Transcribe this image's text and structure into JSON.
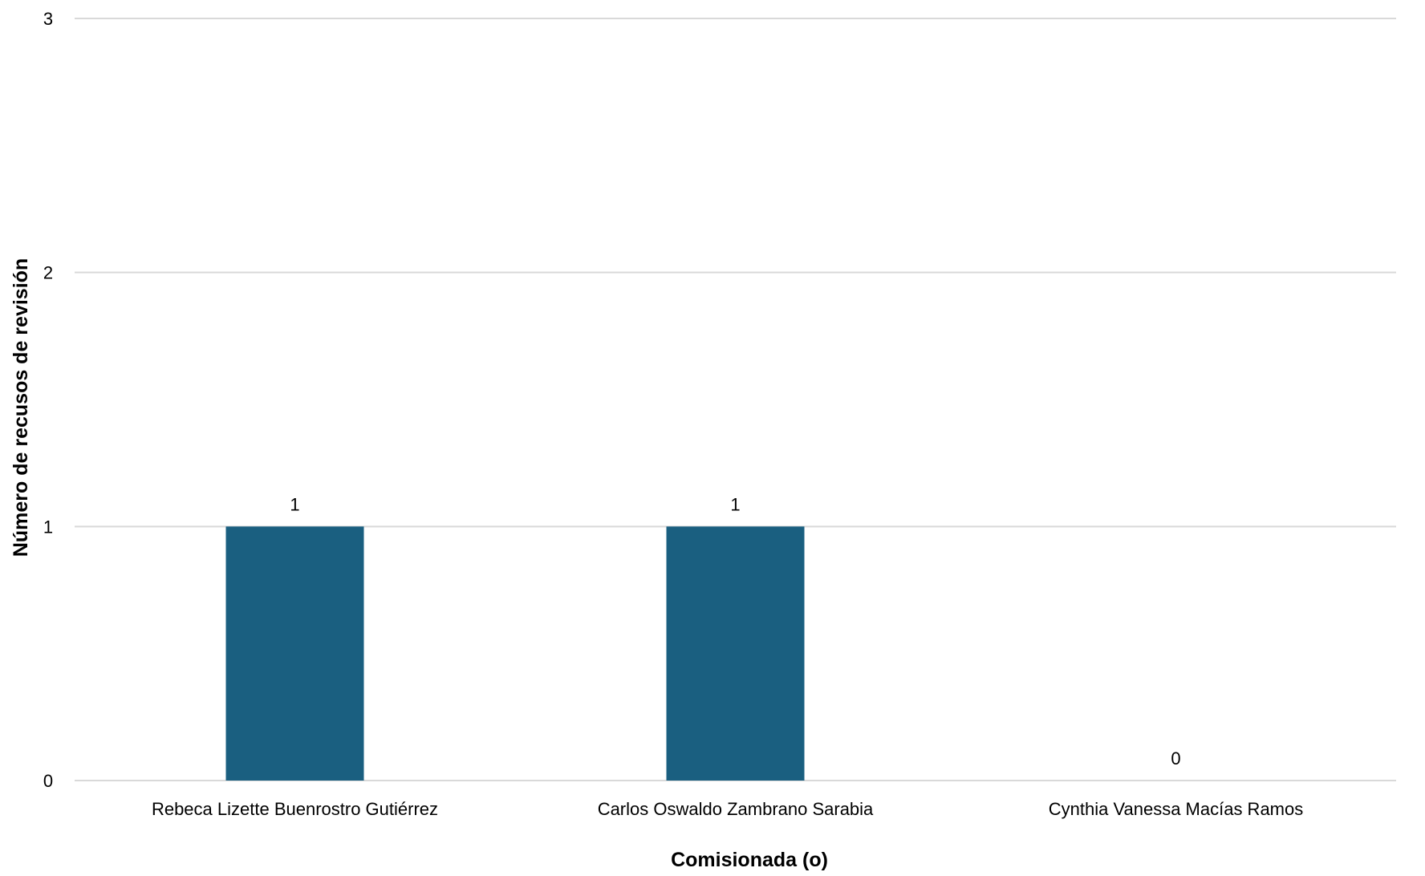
{
  "chart_data": {
    "type": "bar",
    "title": "",
    "categories": [
      "Rebeca Lizette Buenrostro Gutiérrez",
      "Carlos Oswaldo Zambrano Sarabia",
      "Cynthia Vanessa Macías Ramos"
    ],
    "values": [
      1,
      1,
      0
    ],
    "data_labels": [
      "1",
      "1",
      "0"
    ],
    "xlabel": "Comisionada (o)",
    "ylabel": "Número de recusos de revisión",
    "ylim": [
      0,
      3
    ],
    "yticks": [
      0,
      1,
      2,
      3
    ],
    "ytick_labels": [
      "0",
      "1",
      "2",
      "3"
    ],
    "grid": true,
    "legend": "none",
    "colors": {
      "bar": "#1a5f80",
      "gridline": "#d9d9d9",
      "text": "#000000"
    }
  }
}
